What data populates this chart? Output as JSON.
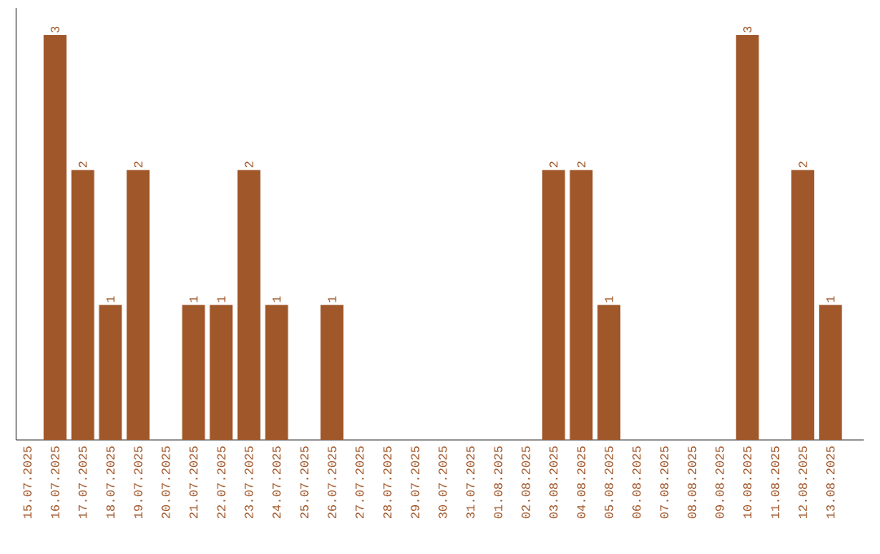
{
  "chart_data": {
    "type": "bar",
    "categories": [
      "15.07.2025",
      "16.07.2025",
      "17.07.2025",
      "18.07.2025",
      "19.07.2025",
      "20.07.2025",
      "21.07.2025",
      "22.07.2025",
      "23.07.2025",
      "24.07.2025",
      "25.07.2025",
      "26.07.2025",
      "27.07.2025",
      "28.07.2025",
      "29.07.2025",
      "30.07.2025",
      "31.07.2025",
      "01.08.2025",
      "02.08.2025",
      "03.08.2025",
      "04.08.2025",
      "05.08.2025",
      "06.08.2025",
      "07.08.2025",
      "08.08.2025",
      "09.08.2025",
      "10.08.2025",
      "11.08.2025",
      "12.08.2025",
      "13.08.2025"
    ],
    "values": [
      0,
      3,
      2,
      1,
      2,
      0,
      1,
      1,
      2,
      1,
      0,
      1,
      0,
      0,
      0,
      0,
      0,
      0,
      0,
      2,
      2,
      1,
      0,
      0,
      0,
      0,
      3,
      0,
      2,
      1
    ],
    "value_labels": [
      null,
      "3",
      "2",
      "1",
      "2",
      null,
      "1",
      "1",
      "2",
      "1",
      null,
      "1",
      null,
      null,
      null,
      null,
      null,
      null,
      null,
      "2",
      "2",
      "1",
      null,
      null,
      null,
      null,
      "3",
      null,
      "2",
      "1"
    ],
    "color": "#a0572a",
    "ylim": [
      0,
      3.2
    ],
    "tick_labels": "x",
    "grid": false
  }
}
